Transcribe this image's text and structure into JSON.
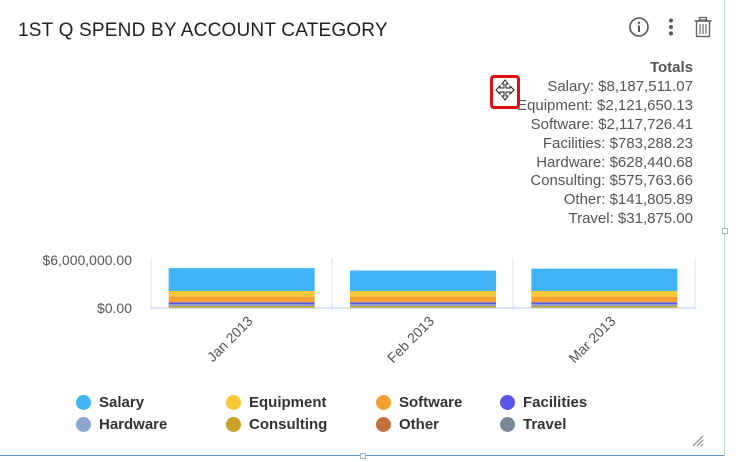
{
  "widget": {
    "title": "1ST Q SPEND BY ACCOUNT CATEGORY",
    "toolbar": {
      "info": "info-icon",
      "menu": "kebab-menu-icon",
      "delete": "trash-icon"
    }
  },
  "totals": {
    "header": "Totals",
    "items": [
      "Salary: $8,187,511.07",
      "Equipment: $2,121,650.13",
      "Software: $2,117,726.41",
      "Facilities: $783,288.23",
      "Hardware: $628,440.68",
      "Consulting: $575,763.66",
      "Other: $141,805.89",
      "Travel: $31,875.00"
    ]
  },
  "chart_data": {
    "type": "bar",
    "stacked": true,
    "categories": [
      "Jan 2013",
      "Feb 2013",
      "Mar 2013"
    ],
    "yticks": [
      "$6,000,000.00",
      "$0.00"
    ],
    "ylim": [
      0,
      6000000
    ],
    "grid": false,
    "legend_position": "bottom",
    "series": [
      {
        "name": "Travel",
        "color": "#778899",
        "values": [
          10625,
          10625,
          10625
        ]
      },
      {
        "name": "Other",
        "color": "#c0703a",
        "values": [
          47268,
          47268,
          47270
        ]
      },
      {
        "name": "Consulting",
        "color": "#c9a227",
        "values": [
          191921,
          191921,
          191922
        ]
      },
      {
        "name": "Hardware",
        "color": "#8ea7d0",
        "values": [
          209480,
          209480,
          209481
        ]
      },
      {
        "name": "Facilities",
        "color": "#5a55e8",
        "values": [
          261096,
          261096,
          261096
        ]
      },
      {
        "name": "Software",
        "color": "#f5a030",
        "values": [
          705909,
          705909,
          705908
        ]
      },
      {
        "name": "Equipment",
        "color": "#f8c839",
        "values": [
          707217,
          707217,
          707216
        ]
      },
      {
        "name": "Salary",
        "color": "#41b4f5",
        "values": [
          2850000,
          2550000,
          2787511
        ]
      }
    ]
  },
  "legend": {
    "items": [
      {
        "label": "Salary",
        "color": "#41b4f5"
      },
      {
        "label": "Equipment",
        "color": "#f8c839"
      },
      {
        "label": "Software",
        "color": "#f5a030"
      },
      {
        "label": "Facilities",
        "color": "#5a55e8"
      },
      {
        "label": "Hardware",
        "color": "#8ea7d0"
      },
      {
        "label": "Consulting",
        "color": "#c9a227"
      },
      {
        "label": "Other",
        "color": "#c0703a"
      },
      {
        "label": "Travel",
        "color": "#778899"
      }
    ]
  }
}
